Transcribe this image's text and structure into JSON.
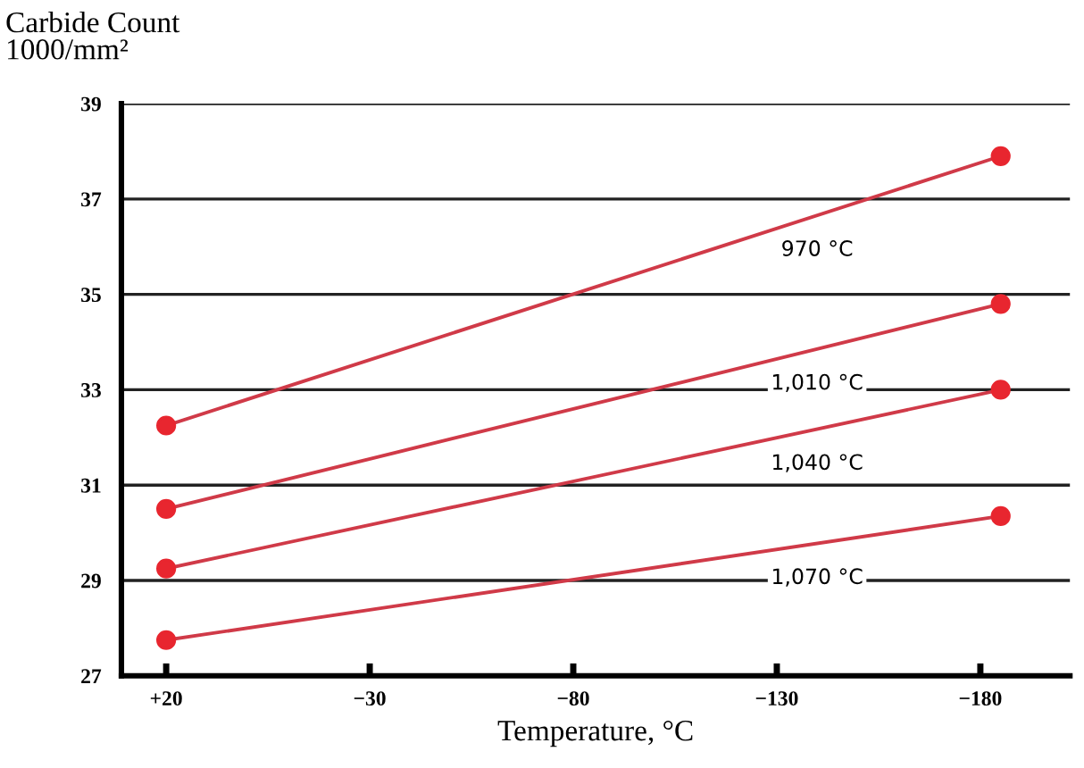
{
  "chart_data": {
    "type": "line",
    "ylabel": "Carbide Count\n1000/mm²",
    "xlabel": "Temperature, °C",
    "x": [
      20,
      -185
    ],
    "series": [
      {
        "name": "970 °C",
        "color": "#d03a48",
        "values": [
          32.25,
          37.9
        ]
      },
      {
        "name": "1,010 °C",
        "color": "#d03a48",
        "values": [
          30.5,
          34.8
        ]
      },
      {
        "name": "1,040 °C",
        "color": "#d03a48",
        "values": [
          29.25,
          33.0
        ]
      },
      {
        "name": "1,070 °C",
        "color": "#d03a48",
        "values": [
          27.75,
          30.35
        ]
      }
    ],
    "xlim": [
      31,
      -202
    ],
    "xticks": [
      {
        "value": 20,
        "label": "+20"
      },
      {
        "value": -30,
        "label": "−30"
      },
      {
        "value": -80,
        "label": "−80"
      },
      {
        "value": -130,
        "label": "−130"
      },
      {
        "value": -180,
        "label": "−180"
      }
    ],
    "ylim": [
      27,
      39
    ],
    "yticks": [
      27,
      29,
      31,
      33,
      35,
      37,
      39
    ],
    "grid": "y",
    "legend": false,
    "marker": "circle",
    "line_style": "solid"
  }
}
